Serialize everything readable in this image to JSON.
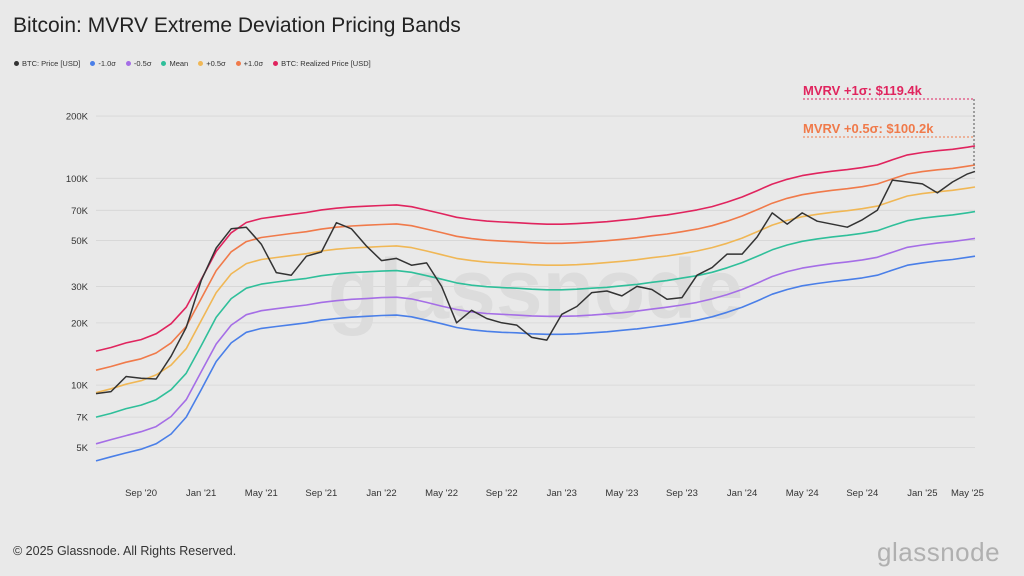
{
  "chart_data": {
    "type": "line",
    "title": "Bitcoin: MVRV Extreme Deviation Pricing Bands",
    "xlabel": "",
    "ylabel": "",
    "yscale": "log",
    "ylim": [
      3800,
      250000
    ],
    "xlim": [
      0,
      58.5
    ],
    "x_ticks": [
      {
        "label": "Sep '20",
        "x": 3
      },
      {
        "label": "Jan '21",
        "x": 7
      },
      {
        "label": "May '21",
        "x": 11
      },
      {
        "label": "Sep '21",
        "x": 15
      },
      {
        "label": "Jan '22",
        "x": 19
      },
      {
        "label": "May '22",
        "x": 23
      },
      {
        "label": "Sep '22",
        "x": 27
      },
      {
        "label": "Jan '23",
        "x": 31
      },
      {
        "label": "May '23",
        "x": 35
      },
      {
        "label": "Sep '23",
        "x": 39
      },
      {
        "label": "Jan '24",
        "x": 43
      },
      {
        "label": "May '24",
        "x": 47
      },
      {
        "label": "Sep '24",
        "x": 51
      },
      {
        "label": "Jan '25",
        "x": 55
      },
      {
        "label": "May '25",
        "x": 58
      }
    ],
    "y_ticks": [
      {
        "label": "5K",
        "value": 5000
      },
      {
        "label": "7K",
        "value": 7000
      },
      {
        "label": "10K",
        "value": 10000
      },
      {
        "label": "20K",
        "value": 20000
      },
      {
        "label": "30K",
        "value": 30000
      },
      {
        "label": "50K",
        "value": 50000
      },
      {
        "label": "70K",
        "value": 70000
      },
      {
        "label": "100K",
        "value": 100000
      },
      {
        "label": "200K",
        "value": 200000
      }
    ],
    "x": [
      0,
      1,
      2,
      3,
      4,
      5,
      6,
      7,
      8,
      9,
      10,
      11,
      12,
      13,
      14,
      15,
      16,
      17,
      18,
      19,
      20,
      21,
      22,
      23,
      24,
      25,
      26,
      27,
      28,
      29,
      30,
      31,
      32,
      33,
      34,
      35,
      36,
      37,
      38,
      39,
      40,
      41,
      42,
      43,
      44,
      45,
      46,
      47,
      48,
      49,
      50,
      51,
      52,
      53,
      54,
      55,
      56,
      57,
      58,
      58.5
    ],
    "series": [
      {
        "name": "BTC: Price [USD]",
        "color": "#333333",
        "values": [
          9100,
          9300,
          11000,
          10800,
          10700,
          13800,
          19000,
          32000,
          46000,
          57000,
          58000,
          48000,
          35000,
          34000,
          42000,
          44000,
          61000,
          57000,
          47000,
          40000,
          41000,
          38000,
          39000,
          30000,
          20000,
          23000,
          21000,
          20000,
          19500,
          17000,
          16500,
          22000,
          24000,
          28000,
          28500,
          27000,
          30000,
          29000,
          26000,
          26500,
          34000,
          37000,
          43000,
          43000,
          52000,
          68000,
          60000,
          68000,
          62000,
          60000,
          58000,
          63000,
          70000,
          98000,
          96000,
          94000,
          85000,
          96000,
          105000,
          108000
        ]
      },
      {
        "name": "-1.0σ",
        "color": "#4a7fe8",
        "values": [
          4300,
          4500,
          4700,
          4900,
          5200,
          5800,
          7000,
          9500,
          13000,
          16000,
          18000,
          18800,
          19200,
          19600,
          20000,
          20600,
          21000,
          21300,
          21500,
          21700,
          21800,
          21400,
          20600,
          19800,
          19000,
          18500,
          18200,
          18000,
          17900,
          17700,
          17600,
          17600,
          17700,
          17900,
          18100,
          18400,
          18700,
          19100,
          19500,
          20000,
          20600,
          21400,
          22500,
          23800,
          25500,
          27500,
          29000,
          30200,
          31000,
          31700,
          32300,
          33000,
          34000,
          36000,
          38000,
          39000,
          39800,
          40500,
          41500,
          42000
        ]
      },
      {
        "name": "-0.5σ",
        "color": "#a56ee6",
        "values": [
          5200,
          5450,
          5700,
          5950,
          6300,
          7050,
          8500,
          11600,
          15800,
          19500,
          21900,
          22900,
          23400,
          23900,
          24400,
          25100,
          25600,
          26000,
          26200,
          26500,
          26600,
          26100,
          25100,
          24100,
          23200,
          22600,
          22200,
          22000,
          21800,
          21600,
          21500,
          21500,
          21600,
          21800,
          22100,
          22400,
          22800,
          23300,
          23800,
          24400,
          25100,
          26100,
          27400,
          29000,
          31100,
          33500,
          35400,
          36800,
          37800,
          38700,
          39400,
          40300,
          41500,
          43900,
          46400,
          47600,
          48600,
          49400,
          50600,
          51200
        ]
      },
      {
        "name": "Mean",
        "color": "#2fbf9a",
        "values": [
          7000,
          7300,
          7700,
          8000,
          8500,
          9500,
          11400,
          15500,
          21300,
          26200,
          29400,
          30800,
          31500,
          32200,
          32800,
          33800,
          34500,
          35000,
          35300,
          35600,
          35800,
          35100,
          33800,
          32500,
          31200,
          30400,
          29900,
          29600,
          29400,
          29100,
          28900,
          28900,
          29100,
          29400,
          29700,
          30200,
          30700,
          31400,
          32000,
          32900,
          33800,
          35100,
          36900,
          39100,
          41900,
          45100,
          47600,
          49600,
          50900,
          52100,
          53000,
          54200,
          55800,
          59100,
          62400,
          64100,
          65400,
          66500,
          68100,
          69000
        ]
      },
      {
        "name": "+0.5σ",
        "color": "#f0b755",
        "values": [
          9200,
          9600,
          10100,
          10500,
          11200,
          12500,
          15000,
          20500,
          28000,
          34500,
          38700,
          40500,
          41400,
          42300,
          43200,
          44500,
          45400,
          46000,
          46400,
          46800,
          47100,
          46200,
          44500,
          42700,
          41000,
          40000,
          39300,
          38900,
          38600,
          38200,
          38000,
          38000,
          38200,
          38600,
          39100,
          39700,
          40400,
          41300,
          42100,
          43200,
          44500,
          46200,
          48500,
          51400,
          55100,
          59400,
          62600,
          65200,
          67000,
          68500,
          69700,
          71300,
          73400,
          77700,
          82100,
          84300,
          86000,
          87500,
          89600,
          90800
        ]
      },
      {
        "name": "+1.0σ",
        "color": "#f07a4a",
        "values": [
          11800,
          12300,
          12900,
          13400,
          14300,
          16000,
          19200,
          26200,
          35800,
          44100,
          49400,
          51700,
          52900,
          54100,
          55200,
          56800,
          58000,
          58800,
          59300,
          59800,
          60200,
          59000,
          56800,
          54600,
          52400,
          51100,
          50200,
          49700,
          49300,
          48800,
          48500,
          48500,
          48800,
          49300,
          49900,
          50700,
          51600,
          52800,
          53800,
          55200,
          56800,
          59000,
          62000,
          65700,
          70400,
          75800,
          80000,
          83300,
          85600,
          87500,
          89100,
          91100,
          93800,
          99300,
          104900,
          107700,
          109900,
          111700,
          114400,
          116000
        ]
      },
      {
        "name": "BTC: Realized Price [USD]",
        "color": "#e0245e",
        "values": [
          14600,
          15200,
          16000,
          16600,
          17700,
          19800,
          23800,
          32400,
          44300,
          54500,
          61100,
          63900,
          65400,
          66900,
          68300,
          70300,
          71700,
          72700,
          73300,
          73900,
          74400,
          72900,
          70200,
          67500,
          64800,
          63200,
          62100,
          61500,
          61000,
          60400,
          60000,
          60000,
          60400,
          61000,
          61700,
          62700,
          63800,
          65300,
          66500,
          68300,
          70300,
          73000,
          76700,
          81200,
          87100,
          93700,
          98900,
          103000,
          105800,
          108200,
          110200,
          112700,
          116000,
          122800,
          129700,
          133200,
          135900,
          138100,
          141400,
          143400
        ]
      }
    ],
    "annotations": [
      {
        "text": "MVRV +1σ: $119.4k",
        "value": 119400,
        "color": "#e0245e"
      },
      {
        "text": "MVRV +0.5σ: $100.2k",
        "value": 100200,
        "color": "#f07a4a"
      }
    ],
    "watermark": "glassnode",
    "legend_position": "top-left"
  },
  "footer": {
    "copyright": "© 2025 Glassnode. All Rights Reserved.",
    "brand": "glassnode"
  },
  "colors": {
    "background": "#e9e9e9",
    "grid": "#d6d6d6"
  }
}
